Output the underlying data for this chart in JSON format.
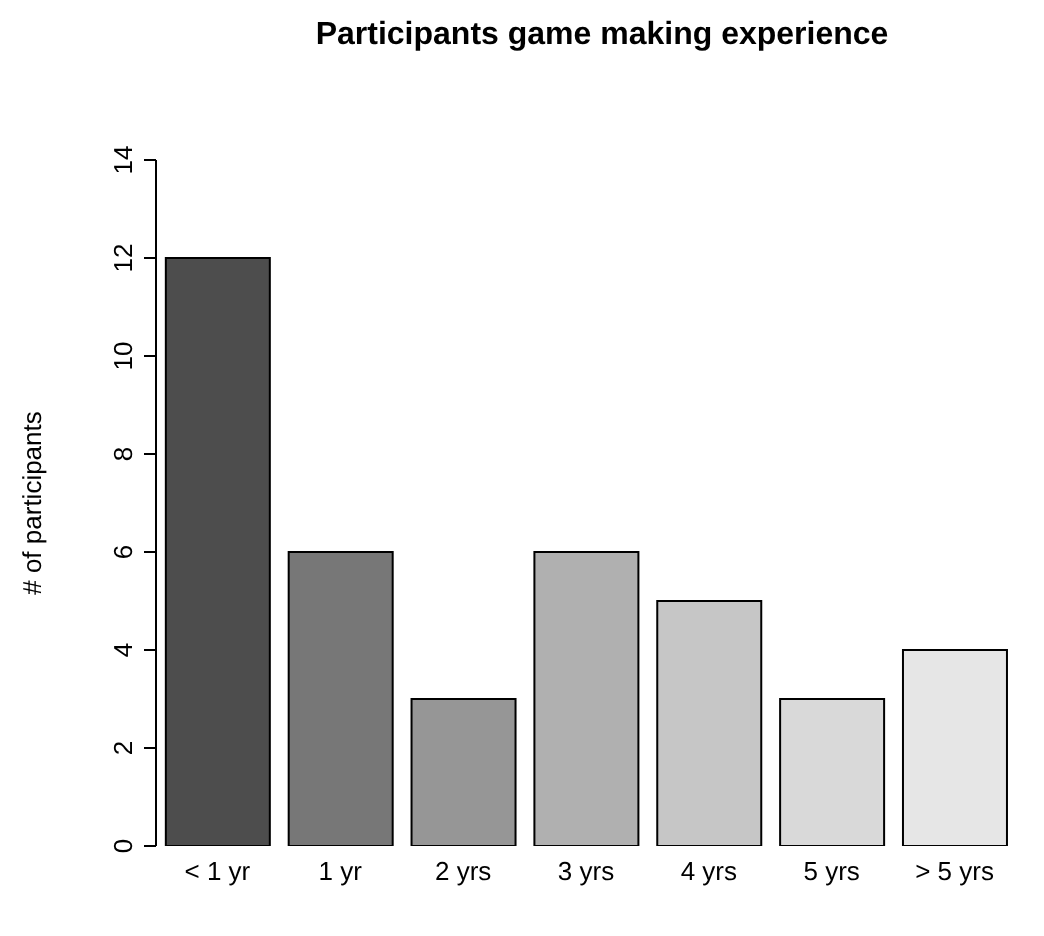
{
  "chart_data": {
    "type": "bar",
    "title": "Participants game making experience",
    "ylabel": "# of participants",
    "categories": [
      "< 1 yr",
      "1 yr",
      "2 yrs",
      "3 yrs",
      "4 yrs",
      "5 yrs",
      "> 5 yrs"
    ],
    "values": [
      12,
      6,
      3,
      6,
      5,
      3,
      4
    ],
    "colors": [
      "#4d4d4d",
      "#777777",
      "#969696",
      "#b0b0b0",
      "#c6c6c6",
      "#d9d9d9",
      "#e6e6e6"
    ],
    "ylim": [
      0,
      14
    ],
    "yticks": [
      0,
      2,
      4,
      6,
      8,
      10,
      12,
      14
    ],
    "grid": false,
    "legend": false
  }
}
